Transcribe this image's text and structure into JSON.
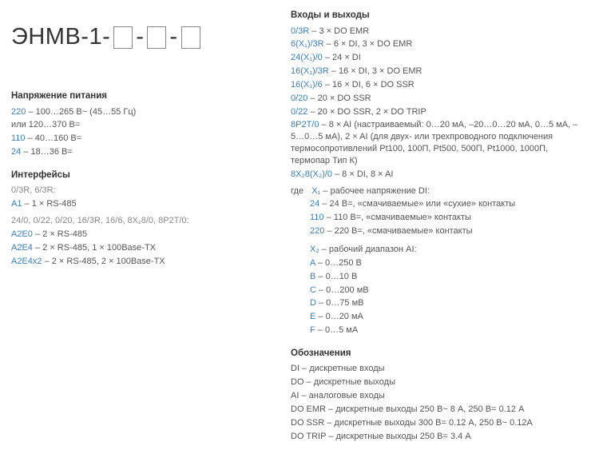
{
  "title_prefix": "ЭНМВ-1-",
  "title_sep": "-",
  "sections": {
    "power": {
      "title": "Напряжение питания",
      "lines": [
        {
          "code": "220",
          "text": " – 100…265 В~ (45…55 Гц)"
        },
        {
          "code": "",
          "text": "или 120…370 В="
        },
        {
          "code": "110",
          "text": " – 40…160 В="
        },
        {
          "code": "24",
          "text": " – 18…36 В="
        }
      ]
    },
    "interfaces": {
      "title": "Интерфейсы",
      "groups": [
        {
          "note": "0/3R, 6/3R:",
          "lines": [
            {
              "code": "A1",
              "text": " – 1 × RS-485"
            }
          ]
        },
        {
          "note": "24/0, 0/22, 0/20, 16/3R, 16/6, 8X₁8/0, 8P2T/0:",
          "lines": [
            {
              "code": "A2E0",
              "text": " – 2 × RS-485"
            },
            {
              "code": "A2E4",
              "text": " – 2 × RS-485, 1 × 100Base-TX"
            },
            {
              "code": "A2E4x2",
              "text": " – 2 × RS-485, 2 × 100Base-TX"
            }
          ]
        }
      ]
    },
    "io": {
      "title": "Входы и выходы",
      "lines": [
        {
          "code": "0/3R",
          "text": " – 3 × DO EMR"
        },
        {
          "code": "6(X₁)/3R",
          "text": " – 6 × DI, 3 × DO EMR"
        },
        {
          "code": "24(X₁)/0",
          "text": " – 24 × DI"
        },
        {
          "code": "16(X₁)/3R",
          "text": " – 16 × DI, 3 × DO EMR"
        },
        {
          "code": "16(X₁)/6",
          "text": " – 16 × DI, 6 × DO SSR"
        },
        {
          "code": "0/20",
          "text": " – 20 × DO SSR"
        },
        {
          "code": "0/22",
          "text": " – 20 × DO SSR, 2 × DO TRIP"
        },
        {
          "code": "8P2T/0",
          "text": " – 8 × AI (настраиваемый: 0…20 мА, –20…0…20 мА, 0…5 мА, –5…0…5 мА), 2 × AI (для двух- или трехпроводного подключения термосопротивлений Pt100, 100П, Pt500, 500П, Pt1000, 1000П, термопар Тип К)"
        },
        {
          "code": "8X₂8(X₂)/0",
          "text": " – 8 × DI, 8 × AI"
        }
      ],
      "where": "где",
      "x1": {
        "label": "X₁",
        "desc": " – рабочее напряжение DI:",
        "lines": [
          {
            "code": "24",
            "text": " – 24 В=, «смачиваемые» или «сухие» контакты"
          },
          {
            "code": "110",
            "text": " – 110 В=, «смачиваемые» контакты"
          },
          {
            "code": "220",
            "text": " – 220 В=, «смачиваемые» контакты"
          }
        ]
      },
      "x2": {
        "label": "X₂",
        "desc": " – рабочий диапазон AI:",
        "lines": [
          {
            "code": "A",
            "text": " – 0…250 В"
          },
          {
            "code": "B",
            "text": " – 0…10 В"
          },
          {
            "code": "C",
            "text": " – 0…200 мВ"
          },
          {
            "code": "D",
            "text": " – 0…75 мВ"
          },
          {
            "code": "E",
            "text": " – 0…20 мА"
          },
          {
            "code": "F",
            "text": " – 0…5 мА"
          }
        ]
      }
    },
    "legend": {
      "title": "Обозначения",
      "lines": [
        {
          "code": "DI",
          "text": " – дискретные входы"
        },
        {
          "code": "DO",
          "text": " – дискретные выходы"
        },
        {
          "code": "AI",
          "text": " – аналоговые входы"
        },
        {
          "code": "DO EMR",
          "text": " – дискретные выходы 250 В~ 8 А, 250 В= 0.12 А"
        },
        {
          "code": "DO SSR",
          "text": " – дискретные выходы 300 В= 0.12 А, 250 В~ 0.12А"
        },
        {
          "code": "DO TRIP",
          "text": " – дискретные выходы 250 В= 3.4 А"
        }
      ]
    }
  }
}
